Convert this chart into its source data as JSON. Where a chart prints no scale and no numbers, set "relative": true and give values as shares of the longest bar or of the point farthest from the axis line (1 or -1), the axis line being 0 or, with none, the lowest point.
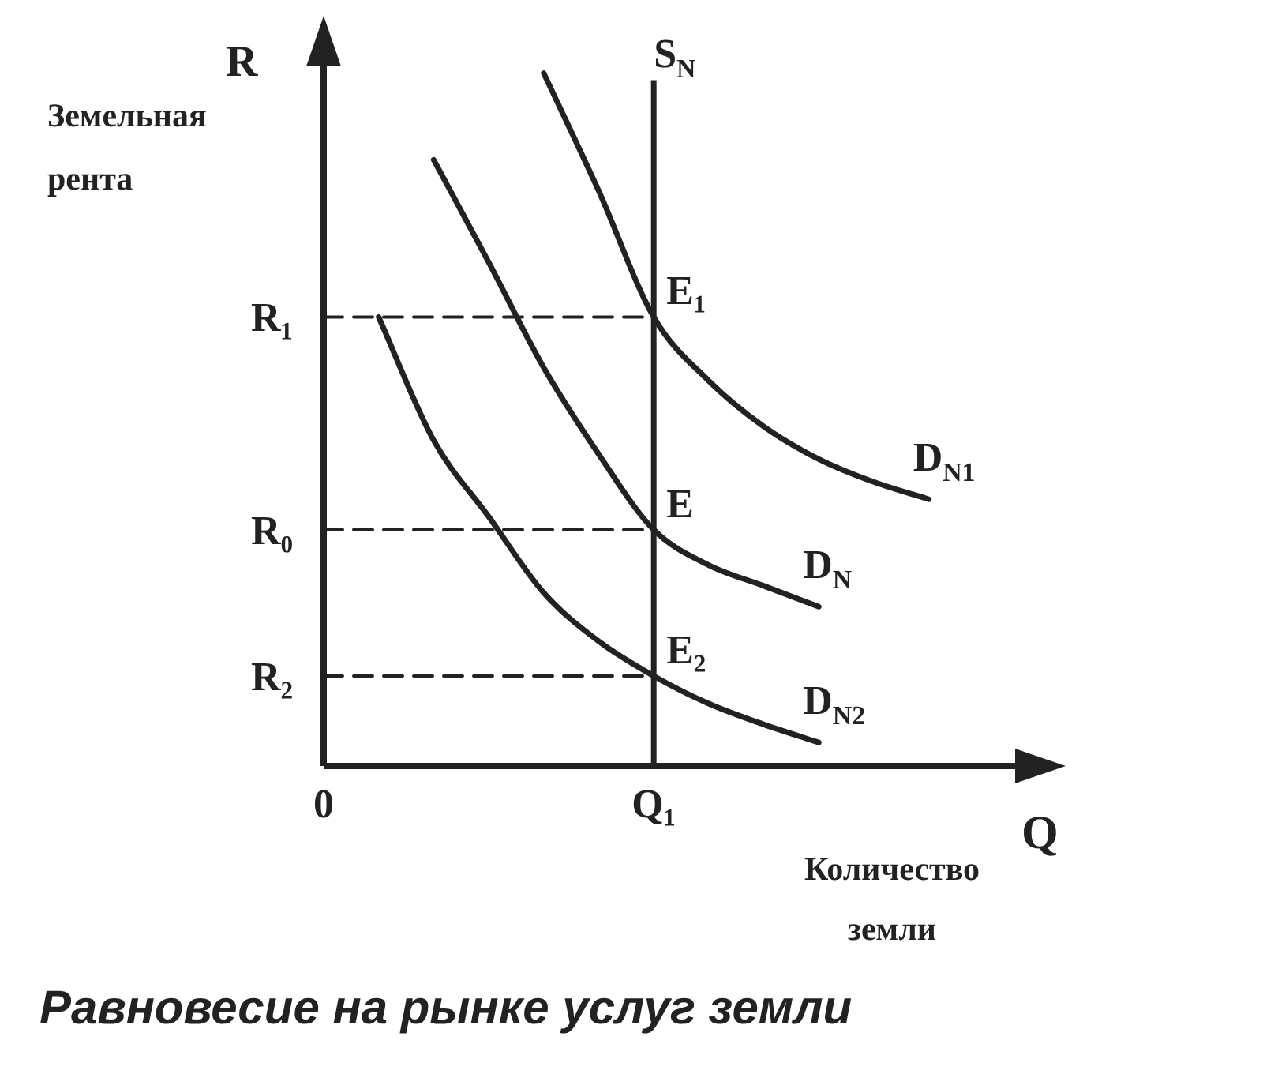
{
  "chart_data": {
    "type": "line",
    "title": "Равновесие на рынке услуг земли",
    "xlabel": "Q",
    "ylabel": "R",
    "legend": false,
    "marker": "none",
    "relative": true,
    "categories": [
      "0",
      null,
      null,
      null,
      null,
      null,
      "Q₁",
      null,
      null,
      null,
      null,
      null
    ],
    "series": [
      {
        "name": "D$_{N1}$",
        "color": "#222222",
        "values": [
          null,
          null,
          null,
          null,
          1,
          0.83,
          0.648,
          0.556,
          0.49,
          0.443,
          0.41,
          0.385
        ]
      },
      {
        "name": "D$_{N}$",
        "color": "#222222",
        "values": [
          null,
          null,
          0.875,
          0.727,
          0.575,
          0.45,
          0.341,
          0.29,
          0.26,
          0.23,
          null,
          null
        ]
      },
      {
        "name": "D$_{N2}$",
        "color": "#222222",
        "values": [
          null,
          0.648,
          0.47,
          0.36,
          0.25,
          0.18,
          0.13,
          0.09,
          0.06,
          0.034,
          null,
          null
        ]
      },
      {
        "color": "#222222",
        "line_style": "dashed",
        "values": [
          0.648,
          0.648,
          0.648,
          0.648,
          0.648,
          0.648,
          0.648,
          null,
          null,
          null,
          null,
          null
        ]
      },
      {
        "color": "#222222",
        "line_style": "dashed",
        "values": [
          0.341,
          0.341,
          0.341,
          0.341,
          0.341,
          0.341,
          0.341,
          null,
          null,
          null,
          null,
          null
        ]
      },
      {
        "color": "#222222",
        "line_style": "dashed",
        "values": [
          0.13,
          0.13,
          0.13,
          0.13,
          0.13,
          0.13,
          0.13,
          null,
          null,
          null,
          null,
          null
        ]
      }
    ],
    "ref_lines": [
      {
        "axis": "x",
        "value": "Q₁",
        "label": "S$_{N}$",
        "color": "#222222"
      }
    ],
    "annotations": [
      {
        "text": "E₁",
        "x": "Q₁",
        "y": 0.648
      },
      {
        "text": "E",
        "x": "Q₁",
        "y": 0.341
      },
      {
        "text": "E₂",
        "x": "Q₁",
        "y": 0.13
      },
      {
        "text": "R₁",
        "x": "0",
        "y": 0.648
      },
      {
        "text": "R₀",
        "x": "0",
        "y": 0.341
      },
      {
        "text": "R₂",
        "x": "0",
        "y": 0.13
      },
      "Земельная рента",
      "Количество земли"
    ]
  }
}
